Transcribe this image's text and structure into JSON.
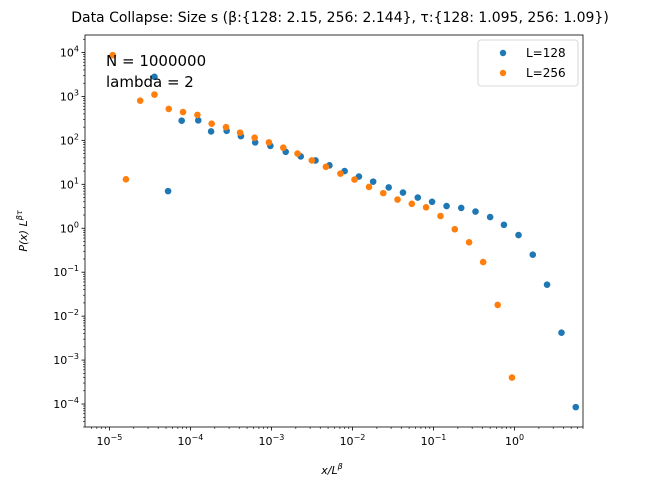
{
  "chart_data": {
    "type": "scatter",
    "title": "Data Collapse: Size s  (β:{128: 2.15, 256: 2.144}, τ:{128: 1.095, 256: 1.09})",
    "xlabel_main": "x/L",
    "xlabel_sup": "β",
    "ylabel_main": "P(x) L",
    "ylabel_sup": "βτ",
    "xscale": "log",
    "yscale": "log",
    "xlim": [
      5e-06,
      7
    ],
    "ylim": [
      3e-05,
      25000.0
    ],
    "x_ticks": [
      {
        "value": 1e-05,
        "base": "10",
        "exp": "−5"
      },
      {
        "value": 0.0001,
        "base": "10",
        "exp": "−4"
      },
      {
        "value": 0.001,
        "base": "10",
        "exp": "−3"
      },
      {
        "value": 0.01,
        "base": "10",
        "exp": "−2"
      },
      {
        "value": 0.1,
        "base": "10",
        "exp": "−1"
      },
      {
        "value": 1,
        "base": "10",
        "exp": "0"
      }
    ],
    "y_ticks": [
      {
        "value": 0.0001,
        "base": "10",
        "exp": "−4"
      },
      {
        "value": 0.001,
        "base": "10",
        "exp": "−3"
      },
      {
        "value": 0.01,
        "base": "10",
        "exp": "−2"
      },
      {
        "value": 0.1,
        "base": "10",
        "exp": "−1"
      },
      {
        "value": 1,
        "base": "10",
        "exp": "0"
      },
      {
        "value": 10,
        "base": "10",
        "exp": "1"
      },
      {
        "value": 100,
        "base": "10",
        "exp": "2"
      },
      {
        "value": 1000,
        "base": "10",
        "exp": "3"
      },
      {
        "value": 10000,
        "base": "10",
        "exp": "4"
      }
    ],
    "annotations": [
      "N = 1000000",
      "lambda = 2"
    ],
    "legend_position": "top-right",
    "series": [
      {
        "name": "L=128",
        "color": "#1f77b4",
        "points": [
          [
            3.6e-05,
            2800
          ],
          [
            5.3e-05,
            7
          ],
          [
            7.8e-05,
            280
          ],
          [
            0.000125,
            285
          ],
          [
            0.00018,
            160
          ],
          [
            0.00028,
            165
          ],
          [
            0.00042,
            125
          ],
          [
            0.00063,
            90
          ],
          [
            0.00097,
            75
          ],
          [
            0.0015,
            55
          ],
          [
            0.0023,
            43
          ],
          [
            0.0035,
            35
          ],
          [
            0.0052,
            27
          ],
          [
            0.008,
            20
          ],
          [
            0.012,
            15
          ],
          [
            0.018,
            11.5
          ],
          [
            0.028,
            8.5
          ],
          [
            0.042,
            6.5
          ],
          [
            0.064,
            5
          ],
          [
            0.096,
            4
          ],
          [
            0.145,
            3.2
          ],
          [
            0.22,
            2.9
          ],
          [
            0.33,
            2.4
          ],
          [
            0.5,
            1.8
          ],
          [
            0.74,
            1.2
          ],
          [
            1.12,
            0.7
          ],
          [
            1.68,
            0.25
          ],
          [
            2.52,
            0.052
          ],
          [
            3.8,
            0.0042
          ],
          [
            5.7,
            8.5e-05
          ]
        ]
      },
      {
        "name": "L=256",
        "color": "#ff7f0e",
        "points": [
          [
            1.1e-05,
            8700
          ],
          [
            1.6e-05,
            13
          ],
          [
            2.4e-05,
            800
          ],
          [
            3.6e-05,
            1100
          ],
          [
            5.4e-05,
            520
          ],
          [
            8.1e-05,
            440
          ],
          [
            0.000122,
            380
          ],
          [
            0.000183,
            240
          ],
          [
            0.000275,
            200
          ],
          [
            0.00041,
            150
          ],
          [
            0.00062,
            115
          ],
          [
            0.00093,
            90
          ],
          [
            0.0014,
            68
          ],
          [
            0.0021,
            50
          ],
          [
            0.00315,
            35
          ],
          [
            0.0047,
            25
          ],
          [
            0.0071,
            17.5
          ],
          [
            0.0106,
            12.8
          ],
          [
            0.016,
            8.7
          ],
          [
            0.024,
            6.3
          ],
          [
            0.036,
            4.5
          ],
          [
            0.054,
            3.6
          ],
          [
            0.081,
            3
          ],
          [
            0.122,
            1.9
          ],
          [
            0.183,
            0.95
          ],
          [
            0.275,
            0.48
          ],
          [
            0.41,
            0.17
          ],
          [
            0.62,
            0.018
          ],
          [
            0.93,
            0.0004
          ]
        ]
      }
    ]
  }
}
